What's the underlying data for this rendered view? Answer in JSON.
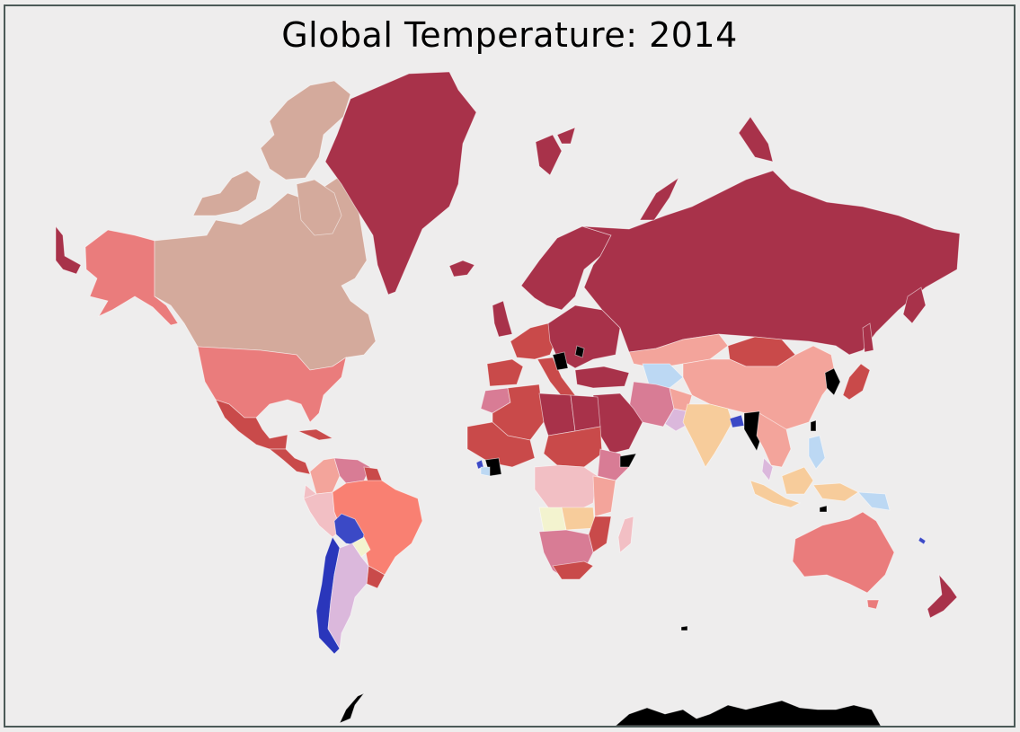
{
  "title": "Global Temperature: 2014",
  "colors": {
    "background": "#eeeded",
    "frame_border": "#4c5a58",
    "dark_red": "#a8324a",
    "red": "#c94a4a",
    "salmon": "#ea7c7c",
    "light_salmon": "#f3a49b",
    "tan": "#d4aa9c",
    "pink": "#d87c95",
    "light_pink": "#f2bfc4",
    "peach": "#f7cc9b",
    "light_yellow": "#f3f3cf",
    "lavender": "#dbb8dc",
    "light_blue": "#bcd8f3",
    "blue": "#3b49c6",
    "dark_blue": "#2a36bb",
    "no_data": "#000000"
  }
}
